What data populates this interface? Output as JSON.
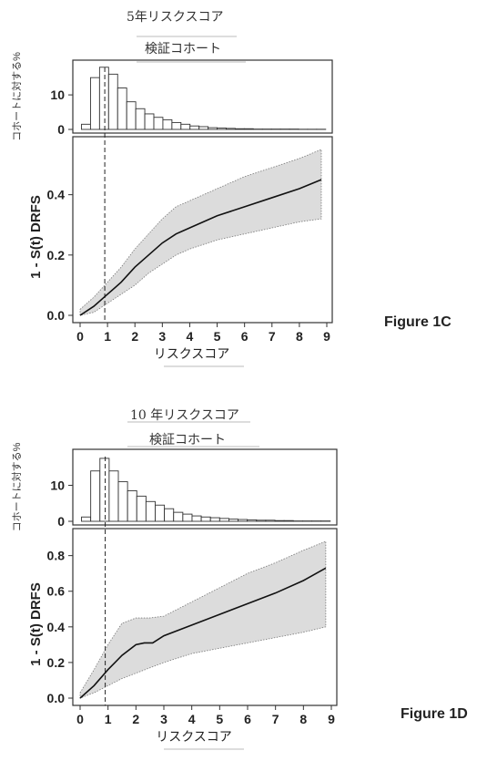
{
  "figures": [
    {
      "title": "5年リスクスコア",
      "subtitle": "検証コホート",
      "figure_label": "Figure 1C"
    },
    {
      "title": "10 年リスクスコア",
      "subtitle": "検証コホート",
      "figure_label": "Figure 1D"
    }
  ],
  "chart_data": [
    {
      "type": "area",
      "title": "5年リスクスコア",
      "subtitle": "検証コホート",
      "xlabel": "リスクスコア",
      "ylabel": "1 - S(t) DRFS",
      "xlim": [
        0,
        9
      ],
      "ylim": [
        0,
        0.55
      ],
      "x_ticks": [
        "0",
        "1",
        "2",
        "3",
        "4",
        "5",
        "6",
        "7",
        "8",
        "9"
      ],
      "y_ticks": [
        "0.0",
        "0.2",
        "0.4"
      ],
      "y_tick_values": [
        0,
        0.2,
        0.4
      ],
      "cutoff_x": 0.9,
      "curve": {
        "x": [
          0,
          0.5,
          1,
          1.5,
          2,
          2.5,
          3,
          3.5,
          4,
          5,
          6,
          7,
          8,
          8.8
        ],
        "y": [
          0,
          0.03,
          0.07,
          0.11,
          0.16,
          0.2,
          0.24,
          0.27,
          0.29,
          0.33,
          0.36,
          0.39,
          0.42,
          0.45
        ]
      },
      "band": {
        "x": [
          0,
          0.5,
          1,
          1.5,
          2,
          2.5,
          3,
          3.5,
          4,
          5,
          6,
          7,
          8,
          8.8
        ],
        "lower": [
          0,
          0.01,
          0.04,
          0.07,
          0.1,
          0.14,
          0.17,
          0.2,
          0.22,
          0.25,
          0.27,
          0.29,
          0.31,
          0.32
        ],
        "upper": [
          0.02,
          0.06,
          0.11,
          0.16,
          0.22,
          0.27,
          0.32,
          0.36,
          0.38,
          0.42,
          0.46,
          0.49,
          0.52,
          0.55
        ]
      },
      "histogram": {
        "ylabel": "コホートに対する%",
        "y_ticks": [
          "0",
          "10"
        ],
        "y_tick_values": [
          0,
          10
        ],
        "ylim": [
          0,
          19
        ],
        "bin_width": 0.33,
        "x_start": 0.05,
        "values": [
          1.5,
          15,
          18,
          16,
          12,
          8,
          6,
          4.5,
          3.5,
          2.8,
          2,
          1.5,
          1,
          0.8,
          0.5,
          0.4,
          0.3,
          0.2,
          0.2,
          0.1,
          0.1,
          0.1,
          0.1,
          0.1,
          0.05,
          0.05,
          0.05
        ]
      }
    },
    {
      "type": "area",
      "title": "10 年リスクスコア",
      "subtitle": "検証コホート",
      "xlabel": "リスクスコア",
      "ylabel": "1 - S(t) DRFS",
      "xlim": [
        0,
        9
      ],
      "ylim": [
        0,
        0.88
      ],
      "x_ticks": [
        "0",
        "1",
        "2",
        "3",
        "4",
        "5",
        "6",
        "7",
        "8",
        "9"
      ],
      "y_ticks": [
        "0.0",
        "0.2",
        "0.4",
        "0.6",
        "0.8"
      ],
      "y_tick_values": [
        0,
        0.2,
        0.4,
        0.6,
        0.8
      ],
      "cutoff_x": 0.9,
      "curve": {
        "x": [
          0,
          0.5,
          1,
          1.5,
          2,
          2.3,
          2.6,
          3,
          4,
          5,
          6,
          7,
          8,
          8.8
        ],
        "y": [
          0,
          0.07,
          0.16,
          0.24,
          0.3,
          0.31,
          0.31,
          0.35,
          0.41,
          0.47,
          0.53,
          0.59,
          0.66,
          0.73
        ]
      },
      "band": {
        "x": [
          0,
          0.5,
          1,
          1.5,
          2,
          2.5,
          3,
          4,
          5,
          6,
          7,
          8,
          8.8
        ],
        "lower": [
          0,
          0.03,
          0.07,
          0.11,
          0.14,
          0.17,
          0.2,
          0.25,
          0.28,
          0.31,
          0.34,
          0.37,
          0.4
        ],
        "upper": [
          0.03,
          0.16,
          0.3,
          0.42,
          0.45,
          0.45,
          0.46,
          0.54,
          0.62,
          0.7,
          0.76,
          0.83,
          0.88
        ]
      },
      "histogram": {
        "ylabel": "コホートに対する%",
        "y_ticks": [
          "0",
          "10"
        ],
        "y_tick_values": [
          0,
          10
        ],
        "ylim": [
          0,
          19
        ],
        "bin_width": 0.33,
        "x_start": 0.05,
        "values": [
          1.2,
          14,
          17.5,
          14,
          11,
          8.5,
          7,
          5.5,
          4.5,
          3.5,
          2.5,
          2,
          1.5,
          1.2,
          1,
          0.8,
          0.6,
          0.5,
          0.4,
          0.3,
          0.3,
          0.2,
          0.2,
          0.1,
          0.1,
          0.1,
          0.1
        ]
      }
    }
  ]
}
